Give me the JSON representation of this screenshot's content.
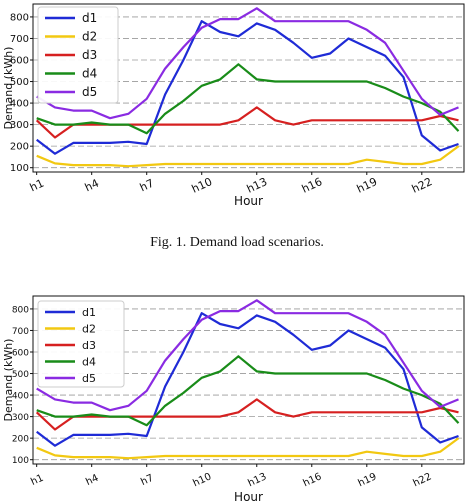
{
  "caption": "Fig. 1.  Demand load scenarios.",
  "chart_data": [
    {
      "type": "line",
      "xlabel": "Hour",
      "ylabel": "Demand (kWh)",
      "x_ticks": [
        "h1",
        "h4",
        "h7",
        "h10",
        "h13",
        "h16",
        "h19",
        "h22"
      ],
      "y_ticks": [
        100,
        200,
        300,
        400,
        500,
        600,
        700,
        800
      ],
      "xlim": [
        0.8,
        24.3
      ],
      "ylim": [
        80,
        860
      ],
      "grid": "horizontal dashed",
      "legend_position": "top-left",
      "x": [
        1,
        2,
        3,
        4,
        5,
        6,
        7,
        8,
        9,
        10,
        11,
        12,
        13,
        14,
        15,
        16,
        17,
        18,
        19,
        20,
        21,
        22,
        23,
        24
      ],
      "series": [
        {
          "name": "d1",
          "color": "#1f2bd6",
          "values": [
            230,
            165,
            215,
            215,
            215,
            220,
            210,
            440,
            600,
            780,
            730,
            710,
            770,
            740,
            680,
            610,
            630,
            700,
            660,
            620,
            520,
            250,
            180,
            210
          ]
        },
        {
          "name": "d2",
          "color": "#f2c811",
          "values": [
            155,
            120,
            112,
            112,
            112,
            107,
            112,
            117,
            117,
            117,
            117,
            117,
            117,
            117,
            117,
            117,
            117,
            117,
            137,
            127,
            117,
            117,
            137,
            200
          ]
        },
        {
          "name": "d3",
          "color": "#d62020",
          "values": [
            320,
            240,
            300,
            300,
            300,
            300,
            300,
            300,
            300,
            300,
            300,
            320,
            380,
            320,
            300,
            320,
            320,
            320,
            320,
            320,
            320,
            320,
            340,
            320
          ]
        },
        {
          "name": "d4",
          "color": "#198c19",
          "values": [
            330,
            300,
            300,
            310,
            300,
            300,
            260,
            350,
            410,
            480,
            510,
            580,
            510,
            500,
            500,
            500,
            500,
            500,
            500,
            470,
            430,
            400,
            360,
            270
          ]
        },
        {
          "name": "d5",
          "color": "#8a2be2",
          "values": [
            430,
            380,
            365,
            365,
            330,
            350,
            420,
            560,
            660,
            750,
            790,
            790,
            840,
            780,
            780,
            780,
            780,
            780,
            740,
            680,
            550,
            420,
            345,
            380
          ]
        }
      ]
    },
    {
      "type": "line",
      "xlabel": "Hour",
      "ylabel": "Demand (kWh)",
      "x_ticks": [
        "h1",
        "h4",
        "h7",
        "h10",
        "h13",
        "h16",
        "h19",
        "h22"
      ],
      "y_ticks": [
        100,
        200,
        300,
        400,
        500,
        600,
        700,
        800
      ],
      "xlim": [
        0.8,
        24.3
      ],
      "ylim": [
        80,
        860
      ],
      "grid": "horizontal dashed",
      "legend_position": "top-left",
      "x": [
        1,
        2,
        3,
        4,
        5,
        6,
        7,
        8,
        9,
        10,
        11,
        12,
        13,
        14,
        15,
        16,
        17,
        18,
        19,
        20,
        21,
        22,
        23,
        24
      ],
      "series": [
        {
          "name": "d1",
          "color": "#1f2bd6",
          "values": [
            230,
            165,
            215,
            215,
            215,
            220,
            210,
            440,
            600,
            780,
            730,
            710,
            770,
            740,
            680,
            610,
            630,
            700,
            660,
            620,
            520,
            250,
            180,
            210
          ]
        },
        {
          "name": "d2",
          "color": "#f2c811",
          "values": [
            155,
            120,
            112,
            112,
            112,
            107,
            112,
            117,
            117,
            117,
            117,
            117,
            117,
            117,
            117,
            117,
            117,
            117,
            137,
            127,
            117,
            117,
            137,
            200
          ]
        },
        {
          "name": "d3",
          "color": "#d62020",
          "values": [
            320,
            240,
            300,
            300,
            300,
            300,
            300,
            300,
            300,
            300,
            300,
            320,
            380,
            320,
            300,
            320,
            320,
            320,
            320,
            320,
            320,
            320,
            340,
            320
          ]
        },
        {
          "name": "d4",
          "color": "#198c19",
          "values": [
            330,
            300,
            300,
            310,
            300,
            300,
            260,
            350,
            410,
            480,
            510,
            580,
            510,
            500,
            500,
            500,
            500,
            500,
            500,
            470,
            430,
            400,
            360,
            270
          ]
        },
        {
          "name": "d5",
          "color": "#8a2be2",
          "values": [
            430,
            380,
            365,
            365,
            330,
            350,
            420,
            560,
            660,
            750,
            790,
            790,
            840,
            780,
            780,
            780,
            780,
            780,
            740,
            680,
            550,
            420,
            345,
            380
          ]
        }
      ]
    }
  ]
}
